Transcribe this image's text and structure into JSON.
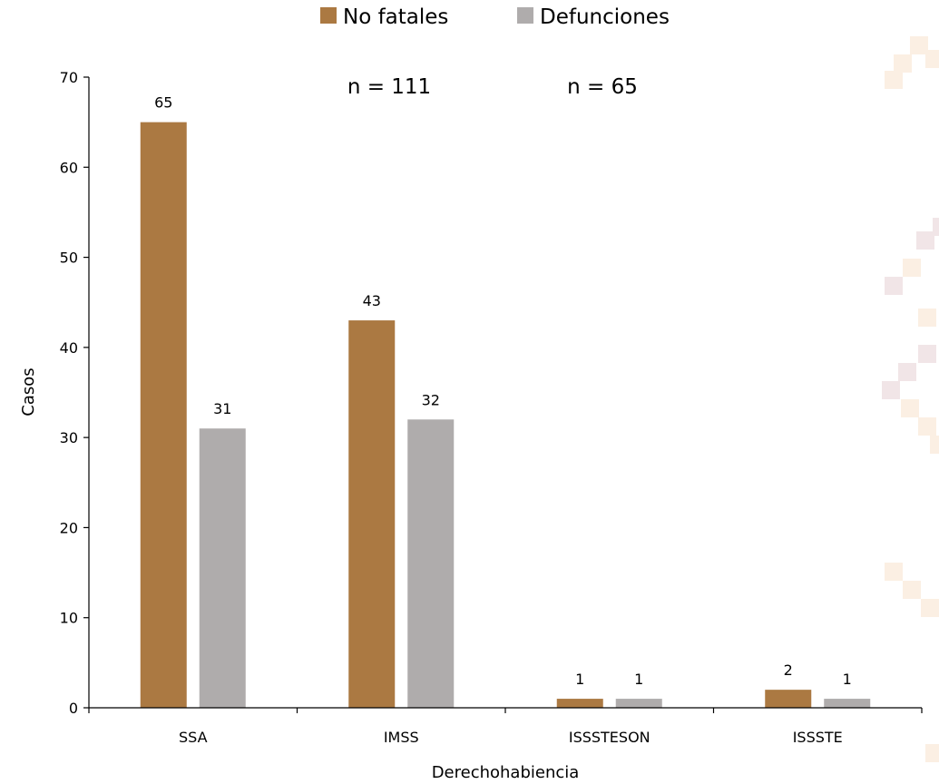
{
  "chart_data": {
    "type": "bar",
    "categories": [
      "SSA",
      "IMSS",
      "ISSSTESON",
      "ISSSTE"
    ],
    "series": [
      {
        "name": "No fatales",
        "values": [
          65,
          43,
          1,
          2
        ],
        "color": "#AB7942"
      },
      {
        "name": "Defunciones",
        "values": [
          31,
          32,
          1,
          1
        ],
        "color": "#AFACAC"
      }
    ],
    "xlabel": "Derechohabiencia",
    "ylabel": "Casos",
    "ylim": [
      0,
      70
    ],
    "yticks": [
      0,
      10,
      20,
      30,
      40,
      50,
      60,
      70
    ],
    "grid": false,
    "legend_position": "top-center",
    "data_labels": true,
    "annotations": [
      "n = 111",
      "n = 65"
    ]
  },
  "decor": {
    "pattern_color_light": "#FBEFE3",
    "pattern_color_pink": "#F1E5E7"
  }
}
